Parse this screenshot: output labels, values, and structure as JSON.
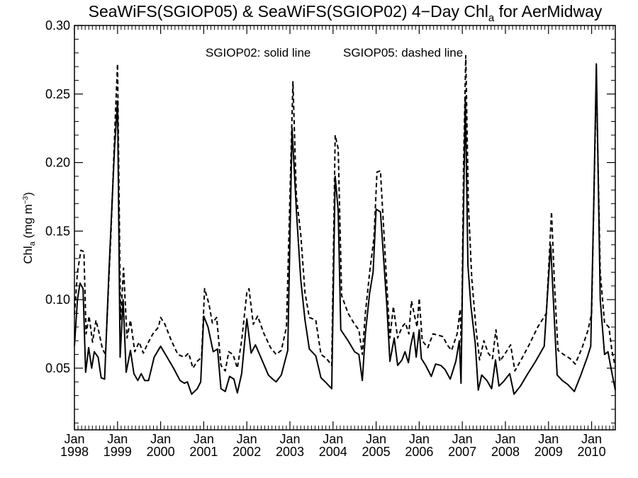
{
  "chart_data": {
    "type": "line",
    "title": {
      "main": "SeaWiFS(SGIOP05) & SeaWiFS(SGIOP02) 4−Day Chl",
      "sub": "a",
      "tail": " for AerMidway"
    },
    "ylabel": {
      "main": "Chl",
      "sub": "a",
      "unit": " (mg m",
      "sup": "−3",
      "close": ")"
    },
    "annotations": [
      {
        "text": "SGIOP02: solid line"
      },
      {
        "text": "SGIOP05: dashed line"
      }
    ],
    "ylim": [
      0.005,
      0.3
    ],
    "xlim": [
      1998.0,
      2010.55
    ],
    "yticks": [
      {
        "value": 0.05,
        "label": "0.05"
      },
      {
        "value": 0.1,
        "label": "0.10"
      },
      {
        "value": 0.15,
        "label": "0.15"
      },
      {
        "value": 0.2,
        "label": "0.20"
      },
      {
        "value": 0.25,
        "label": "0.25"
      },
      {
        "value": 0.3,
        "label": "0.30"
      }
    ],
    "xticks": [
      {
        "value": 1998,
        "month": "Jan",
        "year": "1998"
      },
      {
        "value": 1999,
        "month": "Jan",
        "year": "1999"
      },
      {
        "value": 2000,
        "month": "Jan",
        "year": "2000"
      },
      {
        "value": 2001,
        "month": "Jan",
        "year": "2001"
      },
      {
        "value": 2002,
        "month": "Jan",
        "year": "2002"
      },
      {
        "value": 2003,
        "month": "Jan",
        "year": "2003"
      },
      {
        "value": 2004,
        "month": "Jan",
        "year": "2004"
      },
      {
        "value": 2005,
        "month": "Jan",
        "year": "2005"
      },
      {
        "value": 2006,
        "month": "Jan",
        "year": "2006"
      },
      {
        "value": 2007,
        "month": "Jan",
        "year": "2007"
      },
      {
        "value": 2008,
        "month": "Jan",
        "year": "2008"
      },
      {
        "value": 2009,
        "month": "Jan",
        "year": "2009"
      },
      {
        "value": 2010,
        "month": "Jan",
        "year": "2010"
      }
    ],
    "series": [
      {
        "style": "solid",
        "points": [
          [
            1998.0,
            0.066
          ],
          [
            1998.07,
            0.1
          ],
          [
            1998.13,
            0.112
          ],
          [
            1998.2,
            0.108
          ],
          [
            1998.26,
            0.047
          ],
          [
            1998.33,
            0.065
          ],
          [
            1998.4,
            0.05
          ],
          [
            1998.46,
            0.062
          ],
          [
            1998.55,
            0.058
          ],
          [
            1998.62,
            0.043
          ],
          [
            1998.7,
            0.042
          ],
          [
            1998.8,
            0.12
          ],
          [
            1998.93,
            0.21
          ],
          [
            1999.0,
            0.245
          ],
          [
            1999.06,
            0.058
          ],
          [
            1999.13,
            0.1
          ],
          [
            1999.2,
            0.047
          ],
          [
            1999.3,
            0.063
          ],
          [
            1999.38,
            0.046
          ],
          [
            1999.47,
            0.041
          ],
          [
            1999.55,
            0.046
          ],
          [
            1999.63,
            0.041
          ],
          [
            1999.72,
            0.041
          ],
          [
            1999.85,
            0.058
          ],
          [
            2000.0,
            0.066
          ],
          [
            2000.15,
            0.058
          ],
          [
            2000.3,
            0.05
          ],
          [
            2000.45,
            0.041
          ],
          [
            2000.55,
            0.039
          ],
          [
            2000.62,
            0.04
          ],
          [
            2000.72,
            0.031
          ],
          [
            2000.85,
            0.035
          ],
          [
            2000.93,
            0.04
          ],
          [
            2001.0,
            0.088
          ],
          [
            2001.1,
            0.08
          ],
          [
            2001.22,
            0.062
          ],
          [
            2001.32,
            0.064
          ],
          [
            2001.4,
            0.035
          ],
          [
            2001.5,
            0.033
          ],
          [
            2001.6,
            0.044
          ],
          [
            2001.7,
            0.042
          ],
          [
            2001.78,
            0.032
          ],
          [
            2001.88,
            0.046
          ],
          [
            2002.0,
            0.086
          ],
          [
            2002.1,
            0.061
          ],
          [
            2002.2,
            0.067
          ],
          [
            2002.35,
            0.056
          ],
          [
            2002.5,
            0.045
          ],
          [
            2002.6,
            0.042
          ],
          [
            2002.68,
            0.04
          ],
          [
            2002.8,
            0.045
          ],
          [
            2002.95,
            0.063
          ],
          [
            2003.05,
            0.225
          ],
          [
            2003.15,
            0.165
          ],
          [
            2003.25,
            0.115
          ],
          [
            2003.35,
            0.085
          ],
          [
            2003.45,
            0.064
          ],
          [
            2003.6,
            0.059
          ],
          [
            2003.72,
            0.043
          ],
          [
            2003.82,
            0.04
          ],
          [
            2003.97,
            0.035
          ],
          [
            2004.05,
            0.19
          ],
          [
            2004.12,
            0.165
          ],
          [
            2004.18,
            0.078
          ],
          [
            2004.35,
            0.07
          ],
          [
            2004.5,
            0.062
          ],
          [
            2004.6,
            0.06
          ],
          [
            2004.68,
            0.041
          ],
          [
            2004.75,
            0.075
          ],
          [
            2004.85,
            0.105
          ],
          [
            2004.93,
            0.12
          ],
          [
            2005.0,
            0.166
          ],
          [
            2005.1,
            0.164
          ],
          [
            2005.25,
            0.095
          ],
          [
            2005.32,
            0.055
          ],
          [
            2005.42,
            0.072
          ],
          [
            2005.5,
            0.052
          ],
          [
            2005.6,
            0.056
          ],
          [
            2005.67,
            0.062
          ],
          [
            2005.75,
            0.054
          ],
          [
            2005.8,
            0.066
          ],
          [
            2005.87,
            0.076
          ],
          [
            2005.93,
            0.058
          ],
          [
            2006.0,
            0.078
          ],
          [
            2006.05,
            0.057
          ],
          [
            2006.15,
            0.052
          ],
          [
            2006.28,
            0.044
          ],
          [
            2006.38,
            0.053
          ],
          [
            2006.5,
            0.052
          ],
          [
            2006.6,
            0.049
          ],
          [
            2006.72,
            0.042
          ],
          [
            2006.85,
            0.055
          ],
          [
            2006.93,
            0.07
          ],
          [
            2006.97,
            0.039
          ],
          [
            2007.02,
            0.148
          ],
          [
            2007.07,
            0.248
          ],
          [
            2007.13,
            0.125
          ],
          [
            2007.2,
            0.095
          ],
          [
            2007.3,
            0.068
          ],
          [
            2007.37,
            0.034
          ],
          [
            2007.45,
            0.045
          ],
          [
            2007.57,
            0.041
          ],
          [
            2007.68,
            0.035
          ],
          [
            2007.77,
            0.056
          ],
          [
            2007.85,
            0.037
          ],
          [
            2007.95,
            0.04
          ],
          [
            2008.1,
            0.046
          ],
          [
            2008.2,
            0.031
          ],
          [
            2008.35,
            0.037
          ],
          [
            2008.5,
            0.045
          ],
          [
            2008.7,
            0.055
          ],
          [
            2008.9,
            0.066
          ],
          [
            2009.05,
            0.14
          ],
          [
            2009.12,
            0.095
          ],
          [
            2009.2,
            0.045
          ],
          [
            2009.32,
            0.041
          ],
          [
            2009.45,
            0.038
          ],
          [
            2009.6,
            0.033
          ],
          [
            2009.75,
            0.045
          ],
          [
            2009.9,
            0.058
          ],
          [
            2009.98,
            0.066
          ],
          [
            2010.05,
            0.17
          ],
          [
            2010.11,
            0.272
          ],
          [
            2010.2,
            0.1
          ],
          [
            2010.3,
            0.06
          ],
          [
            2010.38,
            0.062
          ],
          [
            2010.45,
            0.05
          ],
          [
            2010.55,
            0.034
          ]
        ]
      },
      {
        "style": "dashed",
        "points": [
          [
            1998.0,
            0.089
          ],
          [
            1998.07,
            0.12
          ],
          [
            1998.15,
            0.136
          ],
          [
            1998.22,
            0.135
          ],
          [
            1998.27,
            0.075
          ],
          [
            1998.34,
            0.088
          ],
          [
            1998.42,
            0.069
          ],
          [
            1998.5,
            0.085
          ],
          [
            1998.57,
            0.076
          ],
          [
            1998.65,
            0.064
          ],
          [
            1998.72,
            0.06
          ],
          [
            1998.85,
            0.15
          ],
          [
            1998.95,
            0.235
          ],
          [
            1999.0,
            0.272
          ],
          [
            1999.07,
            0.085
          ],
          [
            1999.14,
            0.123
          ],
          [
            1999.22,
            0.072
          ],
          [
            1999.3,
            0.085
          ],
          [
            1999.4,
            0.062
          ],
          [
            1999.5,
            0.069
          ],
          [
            1999.6,
            0.061
          ],
          [
            1999.7,
            0.068
          ],
          [
            1999.82,
            0.075
          ],
          [
            1999.95,
            0.08
          ],
          [
            2000.0,
            0.087
          ],
          [
            2000.1,
            0.082
          ],
          [
            2000.25,
            0.07
          ],
          [
            2000.4,
            0.06
          ],
          [
            2000.55,
            0.058
          ],
          [
            2000.65,
            0.061
          ],
          [
            2000.75,
            0.05
          ],
          [
            2000.85,
            0.055
          ],
          [
            2000.95,
            0.058
          ],
          [
            2001.02,
            0.108
          ],
          [
            2001.12,
            0.097
          ],
          [
            2001.2,
            0.083
          ],
          [
            2001.3,
            0.087
          ],
          [
            2001.4,
            0.052
          ],
          [
            2001.5,
            0.048
          ],
          [
            2001.58,
            0.062
          ],
          [
            2001.68,
            0.06
          ],
          [
            2001.78,
            0.05
          ],
          [
            2001.88,
            0.07
          ],
          [
            2002.0,
            0.105
          ],
          [
            2002.05,
            0.108
          ],
          [
            2002.15,
            0.082
          ],
          [
            2002.25,
            0.088
          ],
          [
            2002.4,
            0.075
          ],
          [
            2002.55,
            0.065
          ],
          [
            2002.68,
            0.06
          ],
          [
            2002.8,
            0.063
          ],
          [
            2002.92,
            0.08
          ],
          [
            2003.07,
            0.259
          ],
          [
            2003.15,
            0.175
          ],
          [
            2003.25,
            0.148
          ],
          [
            2003.35,
            0.105
          ],
          [
            2003.45,
            0.087
          ],
          [
            2003.6,
            0.085
          ],
          [
            2003.72,
            0.06
          ],
          [
            2003.85,
            0.057
          ],
          [
            2003.97,
            0.052
          ],
          [
            2004.05,
            0.22
          ],
          [
            2004.12,
            0.21
          ],
          [
            2004.2,
            0.103
          ],
          [
            2004.35,
            0.09
          ],
          [
            2004.5,
            0.082
          ],
          [
            2004.6,
            0.078
          ],
          [
            2004.68,
            0.06
          ],
          [
            2004.75,
            0.09
          ],
          [
            2004.85,
            0.12
          ],
          [
            2004.95,
            0.145
          ],
          [
            2005.02,
            0.193
          ],
          [
            2005.1,
            0.194
          ],
          [
            2005.25,
            0.11
          ],
          [
            2005.32,
            0.072
          ],
          [
            2005.4,
            0.095
          ],
          [
            2005.5,
            0.072
          ],
          [
            2005.6,
            0.08
          ],
          [
            2005.68,
            0.083
          ],
          [
            2005.76,
            0.075
          ],
          [
            2005.82,
            0.099
          ],
          [
            2005.88,
            0.09
          ],
          [
            2005.95,
            0.08
          ],
          [
            2006.0,
            0.101
          ],
          [
            2006.07,
            0.07
          ],
          [
            2006.2,
            0.065
          ],
          [
            2006.32,
            0.075
          ],
          [
            2006.45,
            0.074
          ],
          [
            2006.55,
            0.073
          ],
          [
            2006.65,
            0.067
          ],
          [
            2006.75,
            0.063
          ],
          [
            2006.88,
            0.075
          ],
          [
            2006.95,
            0.093
          ],
          [
            2006.98,
            0.06
          ],
          [
            2007.03,
            0.2
          ],
          [
            2007.08,
            0.278
          ],
          [
            2007.14,
            0.17
          ],
          [
            2007.22,
            0.115
          ],
          [
            2007.32,
            0.078
          ],
          [
            2007.4,
            0.056
          ],
          [
            2007.5,
            0.07
          ],
          [
            2007.6,
            0.061
          ],
          [
            2007.7,
            0.057
          ],
          [
            2007.78,
            0.078
          ],
          [
            2007.87,
            0.055
          ],
          [
            2008.0,
            0.061
          ],
          [
            2008.12,
            0.067
          ],
          [
            2008.22,
            0.048
          ],
          [
            2008.38,
            0.057
          ],
          [
            2008.55,
            0.067
          ],
          [
            2008.75,
            0.08
          ],
          [
            2008.95,
            0.09
          ],
          [
            2009.07,
            0.164
          ],
          [
            2009.14,
            0.11
          ],
          [
            2009.22,
            0.063
          ],
          [
            2009.35,
            0.06
          ],
          [
            2009.5,
            0.057
          ],
          [
            2009.62,
            0.053
          ],
          [
            2009.78,
            0.065
          ],
          [
            2009.92,
            0.078
          ],
          [
            2010.0,
            0.09
          ],
          [
            2010.07,
            0.2
          ],
          [
            2010.11,
            0.261
          ],
          [
            2010.2,
            0.12
          ],
          [
            2010.3,
            0.083
          ],
          [
            2010.4,
            0.08
          ],
          [
            2010.47,
            0.063
          ],
          [
            2010.55,
            0.051
          ]
        ]
      }
    ]
  }
}
